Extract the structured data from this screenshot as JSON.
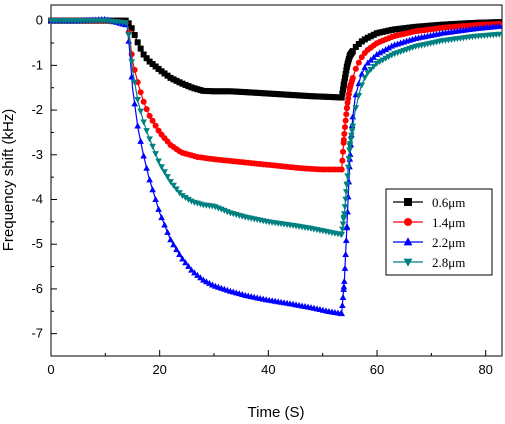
{
  "chart_data": {
    "type": "line",
    "title": "",
    "xlabel": "Time (S)",
    "ylabel": "Frequency shift (kHz)",
    "xlim": [
      0,
      83
    ],
    "ylim": [
      -7.5,
      0.35
    ],
    "xticks": [
      0,
      20,
      40,
      60,
      80
    ],
    "xtick_labels": [
      "0",
      "20",
      "40",
      "60",
      "80"
    ],
    "yticks": [
      0,
      -1,
      -2,
      -3,
      -4,
      -5,
      -6,
      -7
    ],
    "ytick_labels": [
      "0",
      "-1",
      "-2",
      "-3",
      "-4",
      "-5",
      "-6",
      "-7"
    ],
    "grid": false,
    "legend_position": "right",
    "series": [
      {
        "name": "0.6μm",
        "color": "#000000",
        "marker": "square",
        "points": [
          [
            0,
            0
          ],
          [
            5,
            0
          ],
          [
            10,
            0
          ],
          [
            14,
            0
          ],
          [
            15,
            -0.2
          ],
          [
            16,
            -0.5
          ],
          [
            17,
            -0.75
          ],
          [
            18,
            -0.9
          ],
          [
            20,
            -1.1
          ],
          [
            22,
            -1.28
          ],
          [
            24,
            -1.4
          ],
          [
            26,
            -1.5
          ],
          [
            28,
            -1.57
          ],
          [
            30,
            -1.58
          ],
          [
            33,
            -1.58
          ],
          [
            36,
            -1.6
          ],
          [
            40,
            -1.63
          ],
          [
            44,
            -1.66
          ],
          [
            48,
            -1.69
          ],
          [
            52,
            -1.71
          ],
          [
            53.5,
            -1.72
          ],
          [
            54,
            -1.35
          ],
          [
            54.5,
            -1.0
          ],
          [
            55,
            -0.78
          ],
          [
            56,
            -0.6
          ],
          [
            57,
            -0.48
          ],
          [
            58,
            -0.4
          ],
          [
            60,
            -0.28
          ],
          [
            63,
            -0.2
          ],
          [
            67,
            -0.14
          ],
          [
            72,
            -0.09
          ],
          [
            78,
            -0.05
          ],
          [
            83,
            -0.03
          ]
        ]
      },
      {
        "name": "1.4μm",
        "color": "#ff0000",
        "marker": "circle",
        "points": [
          [
            0,
            0
          ],
          [
            5,
            0
          ],
          [
            10,
            0
          ],
          [
            14,
            -0.05
          ],
          [
            14.5,
            -0.4
          ],
          [
            15,
            -0.9
          ],
          [
            16,
            -1.4
          ],
          [
            17,
            -1.8
          ],
          [
            18,
            -2.1
          ],
          [
            20,
            -2.5
          ],
          [
            22,
            -2.78
          ],
          [
            24,
            -2.95
          ],
          [
            27,
            -3.05
          ],
          [
            30,
            -3.1
          ],
          [
            34,
            -3.15
          ],
          [
            38,
            -3.2
          ],
          [
            42,
            -3.25
          ],
          [
            46,
            -3.3
          ],
          [
            50,
            -3.33
          ],
          [
            53.5,
            -3.33
          ],
          [
            54,
            -2.5
          ],
          [
            54.5,
            -1.9
          ],
          [
            55,
            -1.5
          ],
          [
            56,
            -1.1
          ],
          [
            57,
            -0.85
          ],
          [
            58,
            -0.68
          ],
          [
            60,
            -0.5
          ],
          [
            63,
            -0.35
          ],
          [
            67,
            -0.24
          ],
          [
            72,
            -0.16
          ],
          [
            78,
            -0.1
          ],
          [
            83,
            -0.07
          ]
        ]
      },
      {
        "name": "2.2μm",
        "color": "#0000ff",
        "marker": "triangle-up",
        "points": [
          [
            0,
            0
          ],
          [
            5,
            0
          ],
          [
            10,
            0.03
          ],
          [
            14,
            -0.1
          ],
          [
            14.5,
            -0.7
          ],
          [
            15,
            -1.5
          ],
          [
            16,
            -2.4
          ],
          [
            17,
            -3.0
          ],
          [
            18,
            -3.5
          ],
          [
            20,
            -4.3
          ],
          [
            22,
            -4.9
          ],
          [
            24,
            -5.3
          ],
          [
            26,
            -5.6
          ],
          [
            28,
            -5.8
          ],
          [
            30,
            -5.93
          ],
          [
            33,
            -6.05
          ],
          [
            36,
            -6.15
          ],
          [
            40,
            -6.25
          ],
          [
            44,
            -6.33
          ],
          [
            48,
            -6.42
          ],
          [
            51,
            -6.5
          ],
          [
            53.5,
            -6.55
          ],
          [
            54,
            -5.8
          ],
          [
            54.5,
            -4.5
          ],
          [
            55,
            -3.1
          ],
          [
            55.5,
            -2.2
          ],
          [
            56,
            -1.7
          ],
          [
            57,
            -1.25
          ],
          [
            58,
            -0.98
          ],
          [
            60,
            -0.75
          ],
          [
            63,
            -0.55
          ],
          [
            67,
            -0.4
          ],
          [
            72,
            -0.28
          ],
          [
            78,
            -0.18
          ],
          [
            83,
            -0.12
          ]
        ]
      },
      {
        "name": "2.8μm",
        "color": "#008080",
        "marker": "triangle-down",
        "points": [
          [
            0,
            0
          ],
          [
            5,
            0
          ],
          [
            10,
            0
          ],
          [
            14,
            -0.05
          ],
          [
            14.5,
            -0.5
          ],
          [
            15,
            -1.1
          ],
          [
            16,
            -1.8
          ],
          [
            17,
            -2.25
          ],
          [
            18,
            -2.6
          ],
          [
            20,
            -3.2
          ],
          [
            22,
            -3.6
          ],
          [
            24,
            -3.9
          ],
          [
            26,
            -4.05
          ],
          [
            28,
            -4.12
          ],
          [
            30,
            -4.15
          ],
          [
            33,
            -4.3
          ],
          [
            36,
            -4.4
          ],
          [
            40,
            -4.5
          ],
          [
            44,
            -4.57
          ],
          [
            48,
            -4.65
          ],
          [
            52,
            -4.75
          ],
          [
            53.5,
            -4.78
          ],
          [
            54,
            -4.3
          ],
          [
            54.5,
            -3.6
          ],
          [
            55,
            -2.8
          ],
          [
            56,
            -2.0
          ],
          [
            57,
            -1.5
          ],
          [
            58,
            -1.2
          ],
          [
            60,
            -0.95
          ],
          [
            63,
            -0.75
          ],
          [
            67,
            -0.58
          ],
          [
            72,
            -0.45
          ],
          [
            78,
            -0.35
          ],
          [
            83,
            -0.3
          ]
        ]
      }
    ]
  }
}
